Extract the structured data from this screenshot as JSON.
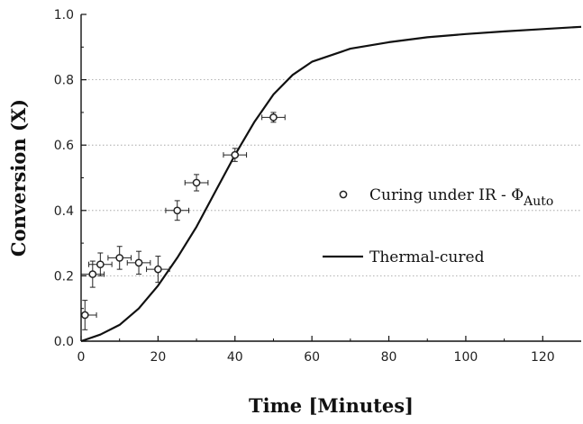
{
  "chart_data": {
    "type": "scatter",
    "xlabel": "Time [Minutes]",
    "ylabel": "Conversion (X)",
    "xlim": [
      0,
      130
    ],
    "ylim": [
      0,
      1.0
    ],
    "x_ticks": [
      "0",
      "20",
      "40",
      "60",
      "80",
      "100",
      "120"
    ],
    "y_ticks": [
      "0.0",
      "0.2",
      "0.4",
      "0.6",
      "0.8",
      "1.0"
    ],
    "grid": "horizontal dotted",
    "legend_placement": "center-right",
    "series": [
      {
        "name": "Curing under IR - Φ",
        "name_subscript": "Auto",
        "kind": "scatter",
        "marker": "open-circle",
        "color": "#222222",
        "points": [
          {
            "x": 1,
            "y": 0.08,
            "xerr": 3,
            "yerr": 0.045
          },
          {
            "x": 3,
            "y": 0.205,
            "xerr": 3,
            "yerr": 0.04
          },
          {
            "x": 5,
            "y": 0.235,
            "xerr": 3,
            "yerr": 0.035
          },
          {
            "x": 10,
            "y": 0.255,
            "xerr": 3,
            "yerr": 0.035
          },
          {
            "x": 15,
            "y": 0.24,
            "xerr": 3,
            "yerr": 0.035
          },
          {
            "x": 20,
            "y": 0.22,
            "xerr": 3,
            "yerr": 0.04
          },
          {
            "x": 25,
            "y": 0.4,
            "xerr": 3,
            "yerr": 0.03
          },
          {
            "x": 30,
            "y": 0.485,
            "xerr": 3,
            "yerr": 0.025
          },
          {
            "x": 40,
            "y": 0.57,
            "xerr": 3,
            "yerr": 0.02
          },
          {
            "x": 50,
            "y": 0.685,
            "xerr": 3,
            "yerr": 0.015
          }
        ]
      },
      {
        "name": "Thermal-cured",
        "kind": "line",
        "color": "#111111",
        "points": [
          {
            "x": 0,
            "y": 0.0
          },
          {
            "x": 5,
            "y": 0.02
          },
          {
            "x": 10,
            "y": 0.05
          },
          {
            "x": 15,
            "y": 0.1
          },
          {
            "x": 20,
            "y": 0.17
          },
          {
            "x": 25,
            "y": 0.255
          },
          {
            "x": 30,
            "y": 0.35
          },
          {
            "x": 35,
            "y": 0.46
          },
          {
            "x": 40,
            "y": 0.57
          },
          {
            "x": 45,
            "y": 0.67
          },
          {
            "x": 50,
            "y": 0.755
          },
          {
            "x": 55,
            "y": 0.815
          },
          {
            "x": 60,
            "y": 0.855
          },
          {
            "x": 70,
            "y": 0.895
          },
          {
            "x": 80,
            "y": 0.915
          },
          {
            "x": 90,
            "y": 0.93
          },
          {
            "x": 100,
            "y": 0.94
          },
          {
            "x": 110,
            "y": 0.948
          },
          {
            "x": 120,
            "y": 0.955
          },
          {
            "x": 130,
            "y": 0.962
          }
        ]
      }
    ]
  }
}
